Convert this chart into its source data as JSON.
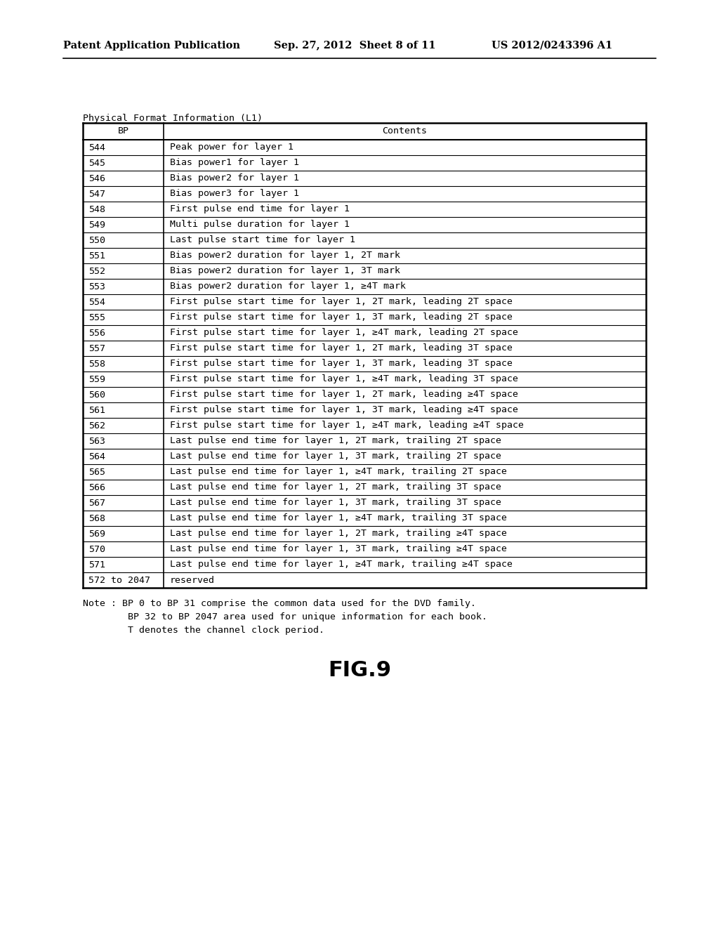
{
  "header_left": "Patent Application Publication",
  "header_center": "Sep. 27, 2012  Sheet 8 of 11",
  "header_right": "US 2012/0243396 A1",
  "table_title": "Physical Format Information (L1)",
  "col1_header": "BP",
  "col2_header": "Contents",
  "rows": [
    [
      "544",
      "Peak power for layer 1"
    ],
    [
      "545",
      "Bias power1 for layer 1"
    ],
    [
      "546",
      "Bias power2 for layer 1"
    ],
    [
      "547",
      "Bias power3 for layer 1"
    ],
    [
      "548",
      "First pulse end time for layer 1"
    ],
    [
      "549",
      "Multi pulse duration for layer 1"
    ],
    [
      "550",
      "Last pulse start time for layer 1"
    ],
    [
      "551",
      "Bias power2 duration for layer 1, 2T mark"
    ],
    [
      "552",
      "Bias power2 duration for layer 1, 3T mark"
    ],
    [
      "553",
      "Bias power2 duration for layer 1, ≥4T mark"
    ],
    [
      "554",
      "First pulse start time for layer 1, 2T mark, leading 2T space"
    ],
    [
      "555",
      "First pulse start time for layer 1, 3T mark, leading 2T space"
    ],
    [
      "556",
      "First pulse start time for layer 1, ≥4T mark, leading 2T space"
    ],
    [
      "557",
      "First pulse start time for layer 1, 2T mark, leading 3T space"
    ],
    [
      "558",
      "First pulse start time for layer 1, 3T mark, leading 3T space"
    ],
    [
      "559",
      "First pulse start time for layer 1, ≥4T mark, leading 3T space"
    ],
    [
      "560",
      "First pulse start time for layer 1, 2T mark, leading ≥4T space"
    ],
    [
      "561",
      "First pulse start time for layer 1, 3T mark, leading ≥4T space"
    ],
    [
      "562",
      "First pulse start time for layer 1, ≥4T mark, leading ≥4T space"
    ],
    [
      "563",
      "Last pulse end time for layer 1, 2T mark, trailing 2T space"
    ],
    [
      "564",
      "Last pulse end time for layer 1, 3T mark, trailing 2T space"
    ],
    [
      "565",
      "Last pulse end time for layer 1, ≥4T mark, trailing 2T space"
    ],
    [
      "566",
      "Last pulse end time for layer 1, 2T mark, trailing 3T space"
    ],
    [
      "567",
      "Last pulse end time for layer 1, 3T mark, trailing 3T space"
    ],
    [
      "568",
      "Last pulse end time for layer 1, ≥4T mark, trailing 3T space"
    ],
    [
      "569",
      "Last pulse end time for layer 1, 2T mark, trailing ≥4T space"
    ],
    [
      "570",
      "Last pulse end time for layer 1, 3T mark, trailing ≥4T space"
    ],
    [
      "571",
      "Last pulse end time for layer 1, ≥4T mark, trailing ≥4T space"
    ],
    [
      "572 to 2047",
      "reserved"
    ]
  ],
  "note_lines": [
    "Note : BP 0 to BP 31 comprise the common data used for the DVD family.",
    "        BP 32 to BP 2047 area used for unique information for each book.",
    "        T denotes the channel clock period."
  ],
  "figure_label": "FIG.9",
  "bg_color": "#ffffff",
  "text_color": "#000000",
  "line_color": "#000000",
  "header_font_size": 10.5,
  "table_font_size": 9.5,
  "note_font_size": 9.5,
  "fig_label_font_size": 22
}
